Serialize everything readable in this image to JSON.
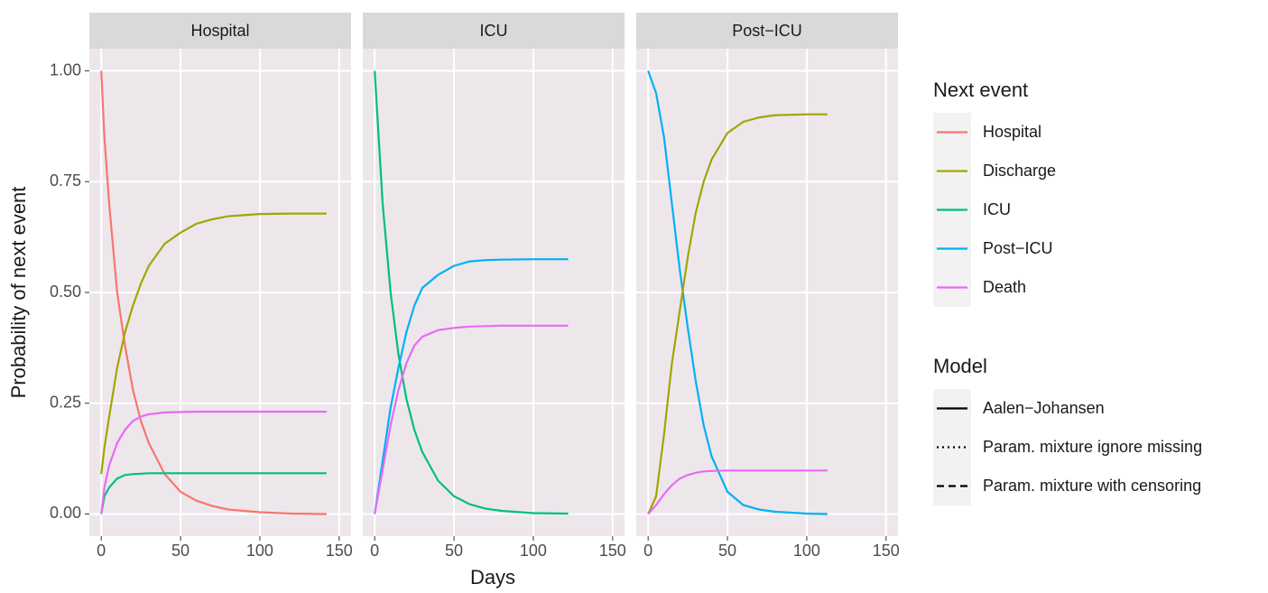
{
  "chart_data": {
    "type": "line",
    "xlabel": "Days",
    "ylabel": "Probability of next event",
    "xlim": [
      -7.5,
      157.5
    ],
    "ylim": [
      -0.05,
      1.05
    ],
    "xticks": [
      0,
      50,
      100,
      150
    ],
    "yticks": [
      {
        "value": 0,
        "label": "0.00"
      },
      {
        "value": 0.25,
        "label": "0.25"
      },
      {
        "value": 0.5,
        "label": "0.50"
      },
      {
        "value": 0.75,
        "label": "0.75"
      },
      {
        "value": 1,
        "label": "1.00"
      }
    ],
    "grid": true,
    "legend": {
      "title": "Next event",
      "entries": [
        {
          "name": "Hospital",
          "color": "#f8766d"
        },
        {
          "name": "Discharge",
          "color": "#a3a500"
        },
        {
          "name": "ICU",
          "color": "#00bf7d"
        },
        {
          "name": "Post−ICU",
          "color": "#00b0f6"
        },
        {
          "name": "Death",
          "color": "#e76bf3"
        }
      ]
    },
    "model_legend": {
      "title": "Model",
      "entries": [
        {
          "name": "Aalen−Johansen",
          "linetype": "solid"
        },
        {
          "name": "Param. mixture ignore missing",
          "linetype": "dotted"
        },
        {
          "name": "Param. mixture with censoring",
          "linetype": "dashed"
        }
      ]
    },
    "facets": [
      {
        "title": "Hospital",
        "x": [
          0,
          2,
          5,
          10,
          15,
          20,
          25,
          30,
          40,
          50,
          60,
          70,
          80,
          100,
          120,
          142
        ],
        "series": [
          {
            "name": "Hospital",
            "color": "#f8766d",
            "values": [
              1,
              0.85,
              0.7,
              0.5,
              0.38,
              0.28,
              0.21,
              0.16,
              0.09,
              0.05,
              0.03,
              0.018,
              0.01,
              0.004,
              0.001,
              0
            ]
          },
          {
            "name": "Discharge",
            "color": "#a3a500",
            "values": [
              0.09,
              0.15,
              0.22,
              0.33,
              0.41,
              0.47,
              0.52,
              0.56,
              0.61,
              0.635,
              0.655,
              0.665,
              0.672,
              0.677,
              0.678,
              0.678
            ]
          },
          {
            "name": "ICU",
            "color": "#00bf7d",
            "values": [
              0,
              0.04,
              0.06,
              0.08,
              0.088,
              0.09,
              0.091,
              0.092,
              0.092,
              0.092,
              0.092,
              0.092,
              0.092,
              0.092,
              0.092,
              0.092
            ]
          },
          {
            "name": "Death",
            "color": "#e76bf3",
            "values": [
              0,
              0.06,
              0.11,
              0.16,
              0.19,
              0.21,
              0.22,
              0.225,
              0.229,
              0.23,
              0.231,
              0.231,
              0.231,
              0.231,
              0.231,
              0.231
            ]
          }
        ]
      },
      {
        "title": "ICU",
        "x": [
          0,
          5,
          10,
          15,
          20,
          25,
          30,
          40,
          50,
          60,
          70,
          80,
          100,
          122
        ],
        "series": [
          {
            "name": "ICU",
            "color": "#00bf7d",
            "values": [
              1,
              0.7,
              0.5,
              0.36,
              0.26,
              0.19,
              0.14,
              0.075,
              0.04,
              0.022,
              0.012,
              0.007,
              0.002,
              0.001
            ]
          },
          {
            "name": "Post−ICU",
            "color": "#00b0f6",
            "values": [
              0,
              0.12,
              0.24,
              0.33,
              0.41,
              0.47,
              0.51,
              0.54,
              0.56,
              0.57,
              0.573,
              0.574,
              0.575,
              0.575
            ]
          },
          {
            "name": "Death",
            "color": "#e76bf3",
            "values": [
              0,
              0.1,
              0.2,
              0.28,
              0.34,
              0.38,
              0.4,
              0.415,
              0.42,
              0.423,
              0.424,
              0.425,
              0.425,
              0.425
            ]
          }
        ]
      },
      {
        "title": "Post−ICU",
        "x": [
          0,
          5,
          10,
          15,
          20,
          25,
          30,
          35,
          40,
          50,
          60,
          70,
          80,
          100,
          113
        ],
        "series": [
          {
            "name": "Post−ICU",
            "color": "#00b0f6",
            "values": [
              1,
              0.95,
              0.85,
              0.7,
              0.55,
              0.42,
              0.3,
              0.2,
              0.13,
              0.05,
              0.02,
              0.01,
              0.005,
              0.001,
              0
            ]
          },
          {
            "name": "Discharge",
            "color": "#a3a500",
            "values": [
              0,
              0.04,
              0.18,
              0.34,
              0.46,
              0.58,
              0.68,
              0.75,
              0.8,
              0.86,
              0.885,
              0.895,
              0.9,
              0.902,
              0.902
            ]
          },
          {
            "name": "Death",
            "color": "#e76bf3",
            "values": [
              0,
              0.02,
              0.045,
              0.065,
              0.08,
              0.088,
              0.093,
              0.096,
              0.097,
              0.098,
              0.098,
              0.098,
              0.098,
              0.098,
              0.098
            ]
          }
        ]
      }
    ]
  }
}
